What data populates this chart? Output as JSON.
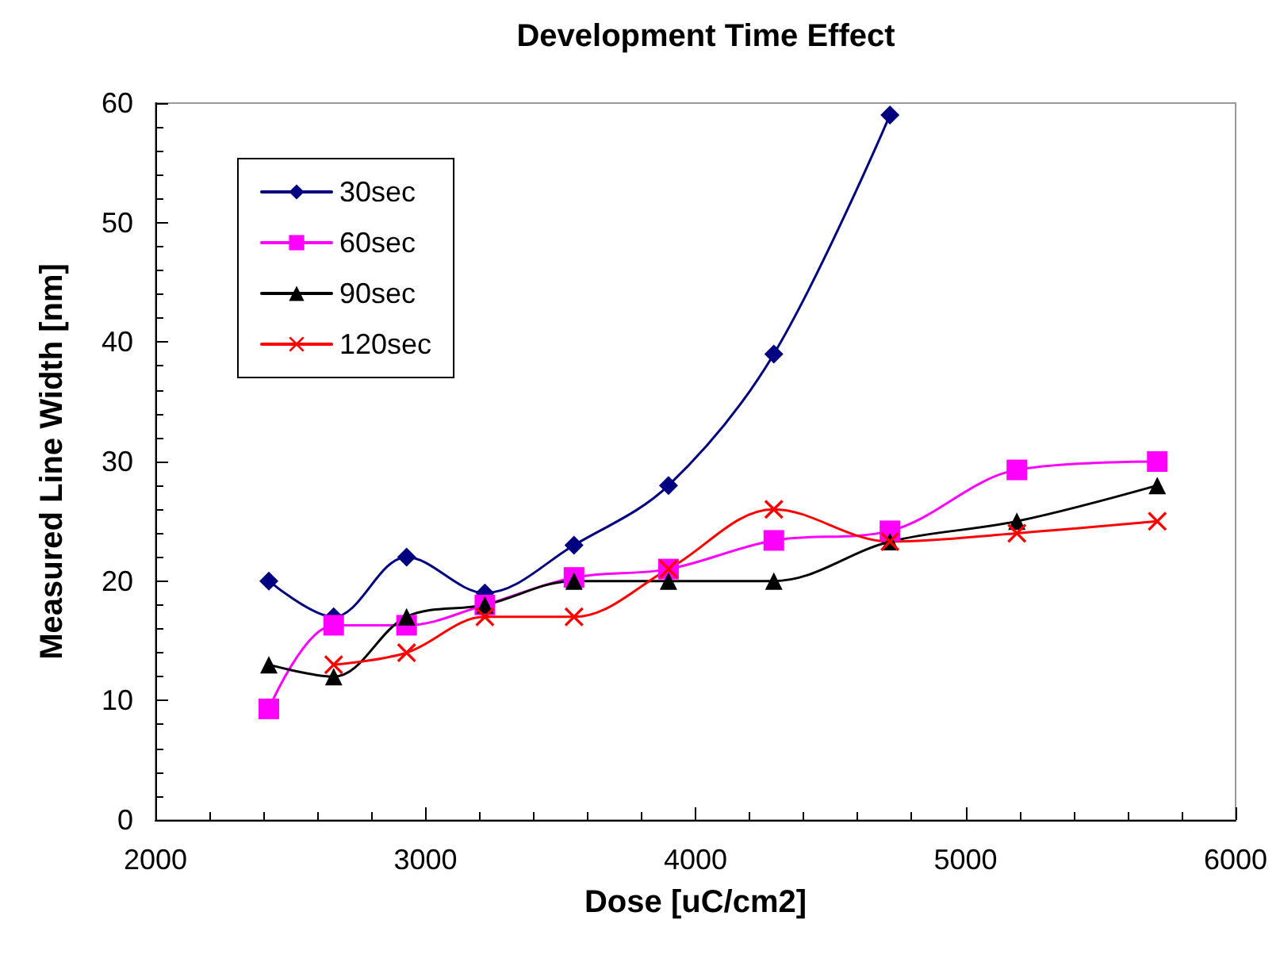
{
  "chart_data": {
    "type": "line",
    "title": "Development Time Effect",
    "xlabel": "Dose [uC/cm2]",
    "ylabel": "Measured Line Width [nm]",
    "xlim": [
      2000,
      6000
    ],
    "xticks": [
      2000,
      3000,
      4000,
      5000,
      6000
    ],
    "ylim": [
      0,
      60
    ],
    "yticks": [
      0,
      10,
      20,
      30,
      40,
      50,
      60
    ],
    "grid": false,
    "legend": "top left",
    "line_style": "solid",
    "series": [
      {
        "name": "30sec",
        "color": "#000080",
        "marker": "diamond",
        "x": [
          2420,
          2660,
          2930,
          3220,
          3550,
          3900,
          4290,
          4720
        ],
        "values": [
          20,
          17,
          22,
          19,
          23,
          28,
          39,
          59
        ]
      },
      {
        "name": "60sec",
        "color": "#ff00ff",
        "marker": "square",
        "x": [
          2420,
          2660,
          2930,
          3220,
          3550,
          3900,
          4290,
          4720,
          5190,
          5710
        ],
        "values": [
          9.3,
          16.3,
          16.3,
          18,
          20.3,
          21,
          23.4,
          24.2,
          29.3,
          30
        ]
      },
      {
        "name": "90sec",
        "color": "#000000",
        "marker": "triangle",
        "x": [
          2420,
          2660,
          2930,
          3220,
          3550,
          3900,
          4290,
          4720,
          5190,
          5710
        ],
        "values": [
          13,
          12,
          17,
          18,
          20,
          20,
          20,
          23.3,
          25,
          28
        ]
      },
      {
        "name": "120sec",
        "color": "#ff0000",
        "marker": "cross",
        "x": [
          2660,
          2930,
          3220,
          3550,
          3900,
          4290,
          4720,
          5190,
          5710
        ],
        "values": [
          13,
          14,
          17,
          17,
          21,
          26,
          23.3,
          24,
          25
        ]
      }
    ]
  }
}
